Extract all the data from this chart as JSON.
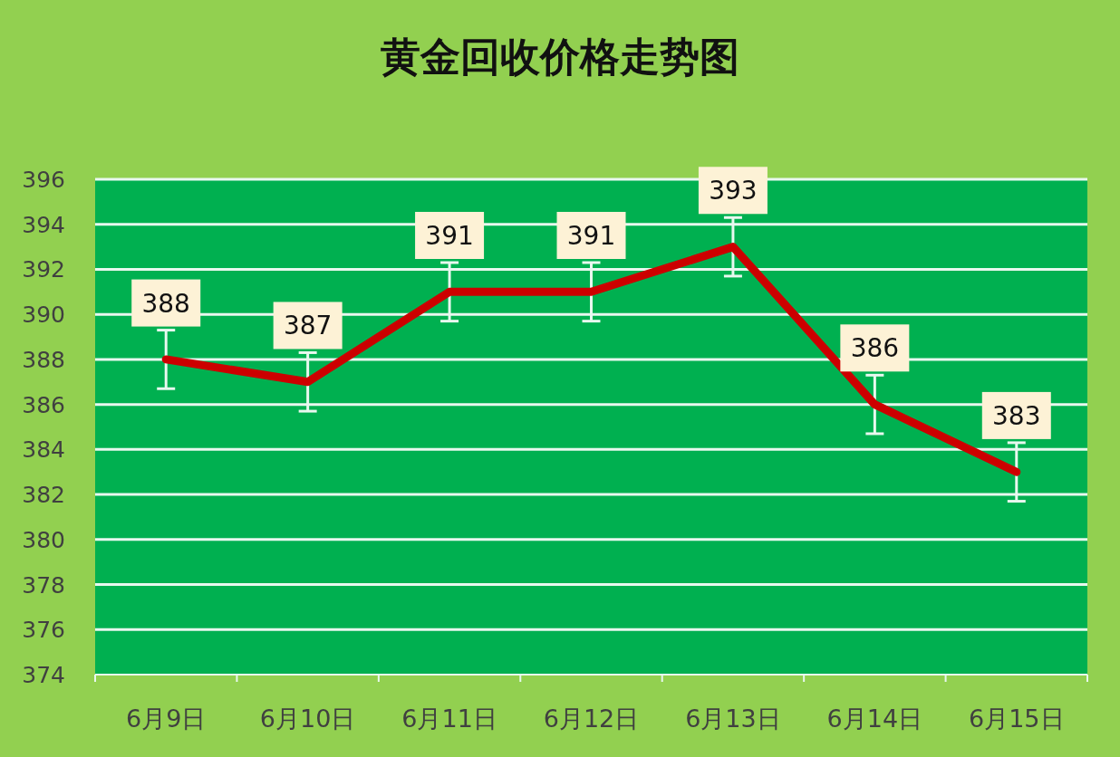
{
  "chart_data": {
    "type": "line",
    "title": "黄金回收价格走势图",
    "categories": [
      "6月9日",
      "6月10日",
      "6月11日",
      "6月12日",
      "6月13日",
      "6月14日",
      "6月15日"
    ],
    "series": [
      {
        "color": "#cc0000",
        "values": [
          388,
          387,
          391,
          391,
          393,
          386,
          383
        ],
        "errors": [
          1.3,
          1.3,
          1.3,
          1.3,
          1.3,
          1.3,
          1.3
        ]
      }
    ],
    "ylim": [
      374,
      396
    ],
    "yticks": [
      374,
      376,
      378,
      380,
      382,
      384,
      386,
      388,
      390,
      392,
      394,
      396
    ],
    "grid": "y",
    "data_labels": true,
    "marker": "none",
    "line_style": "solid"
  }
}
